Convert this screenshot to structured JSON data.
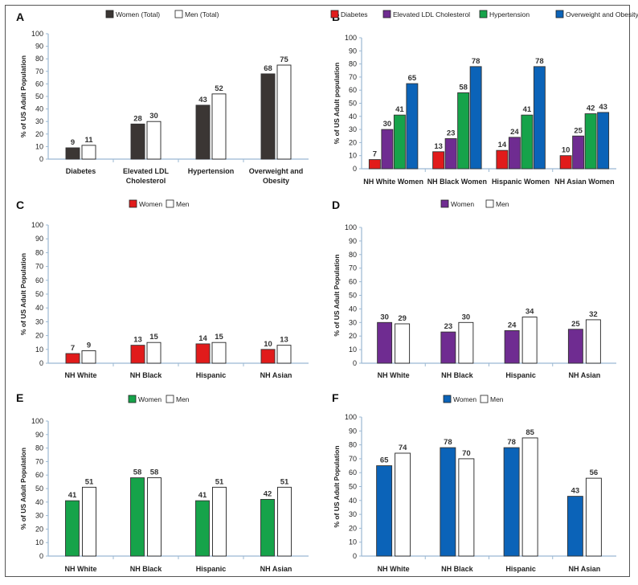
{
  "chart_data": [
    {
      "panel": "A",
      "type": "bar",
      "ylabel": "% of US Adult Population",
      "ylim": [
        0,
        100
      ],
      "categories": [
        "Diabetes",
        "Elevated LDL\nCholesterol",
        "Hypertension",
        "Overweight and\nObesity"
      ],
      "series": [
        {
          "name": "Women (Total)",
          "color": "#3b3634",
          "values": [
            9,
            28,
            43,
            68
          ]
        },
        {
          "name": "Men (Total)",
          "color": "#ffffff",
          "values": [
            11,
            30,
            52,
            75
          ]
        }
      ]
    },
    {
      "panel": "B",
      "type": "bar",
      "ylabel": "% of US Adult population",
      "ylim": [
        0,
        100
      ],
      "categories": [
        "NH White Women",
        "NH Black Women",
        "Hispanic Women",
        "NH Asian Women"
      ],
      "series": [
        {
          "name": "Diabetes",
          "color": "#e11b1b",
          "values": [
            7,
            13,
            14,
            10
          ]
        },
        {
          "name": "Elevated LDL Cholesterol",
          "color": "#6f2c91",
          "values": [
            30,
            23,
            24,
            25
          ]
        },
        {
          "name": "Hypertension",
          "color": "#16a34a",
          "values": [
            41,
            58,
            41,
            42
          ]
        },
        {
          "name": "Overweight and Obesity",
          "color": "#0b63b8",
          "values": [
            65,
            78,
            78,
            43
          ]
        }
      ]
    },
    {
      "panel": "C",
      "type": "bar",
      "ylabel": "% of US Adult Population",
      "ylim": [
        0,
        100
      ],
      "categories": [
        "NH White",
        "NH Black",
        "Hispanic",
        "NH Asian"
      ],
      "series": [
        {
          "name": "Women",
          "color": "#e11b1b",
          "values": [
            7,
            13,
            14,
            10
          ]
        },
        {
          "name": "Men",
          "color": "#ffffff",
          "values": [
            9,
            15,
            15,
            13
          ]
        }
      ]
    },
    {
      "panel": "D",
      "type": "bar",
      "ylabel": "% of US Adult Population",
      "ylim": [
        0,
        100
      ],
      "categories": [
        "NH White",
        "NH Black",
        "Hispanic",
        "NH Asian"
      ],
      "series": [
        {
          "name": "Women",
          "color": "#6f2c91",
          "values": [
            30,
            23,
            24,
            25
          ]
        },
        {
          "name": "Men",
          "color": "#ffffff",
          "values": [
            29,
            30,
            34,
            32
          ]
        }
      ]
    },
    {
      "panel": "E",
      "type": "bar",
      "ylabel": "% of US Adult Population",
      "ylim": [
        0,
        100
      ],
      "categories": [
        "NH White",
        "NH Black",
        "Hispanic",
        "NH Asian"
      ],
      "series": [
        {
          "name": "Women",
          "color": "#16a34a",
          "values": [
            41,
            58,
            41,
            42
          ]
        },
        {
          "name": "Men",
          "color": "#ffffff",
          "values": [
            51,
            58,
            51,
            51
          ]
        }
      ]
    },
    {
      "panel": "F",
      "type": "bar",
      "ylabel": "% of US Adult Population",
      "ylim": [
        0,
        100
      ],
      "categories": [
        "NH White",
        "NH Black",
        "Hispanic",
        "NH Asian"
      ],
      "series": [
        {
          "name": "Women",
          "color": "#0b63b8",
          "values": [
            65,
            78,
            78,
            43
          ]
        },
        {
          "name": "Men",
          "color": "#ffffff",
          "values": [
            74,
            70,
            85,
            56
          ]
        }
      ]
    }
  ]
}
